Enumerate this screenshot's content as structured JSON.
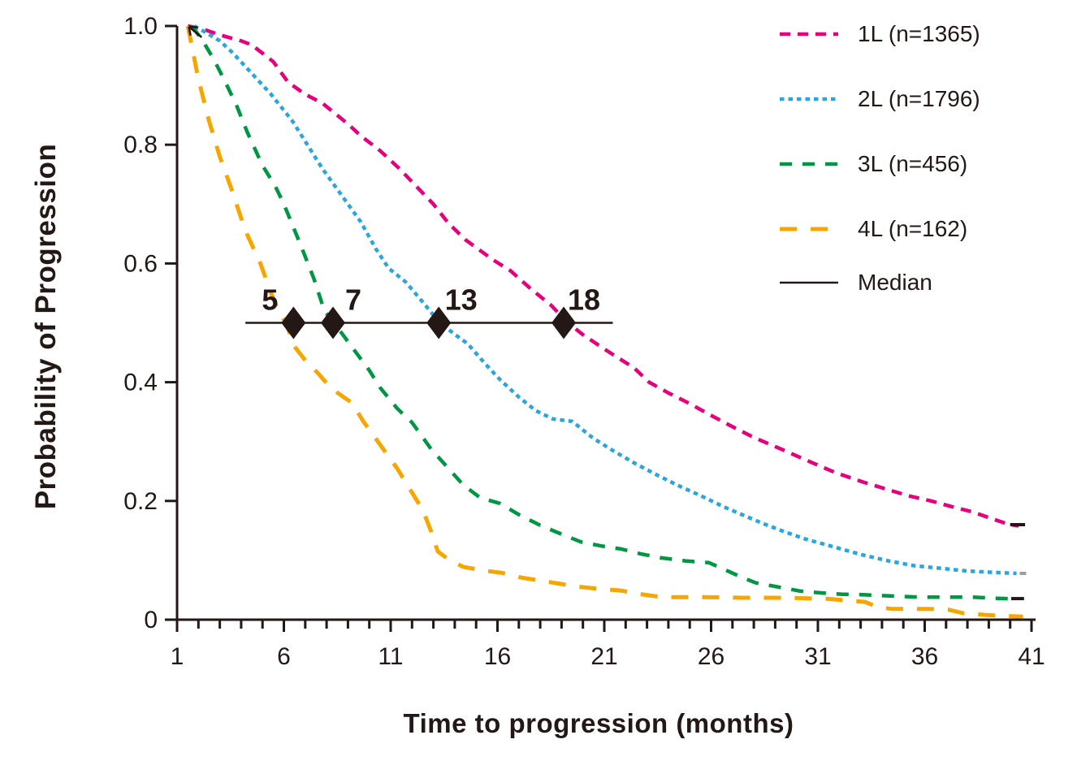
{
  "figure": {
    "background": "#ffffff",
    "text_color": "#231815",
    "axis_color": "#231815"
  },
  "chart_data": {
    "type": "line",
    "title": "",
    "xlabel": "Time to progression (months)",
    "ylabel": "Probability of Progression",
    "xlim": [
      1,
      41
    ],
    "ylim": [
      0,
      1
    ],
    "grid": false,
    "legend_position": "top-right",
    "x_major_ticks": [
      1,
      6,
      11,
      16,
      21,
      26,
      31,
      36,
      41
    ],
    "x_major_tick_labels": [
      "1",
      "6",
      "11",
      "16",
      "21",
      "26",
      "31",
      "36",
      "41"
    ],
    "x_minor_tick_step": 1,
    "y_ticks": [
      {
        "v": 0,
        "label": "0"
      },
      {
        "v": 0.2,
        "label": "0.2"
      },
      {
        "v": 0.4,
        "label": "0.4"
      },
      {
        "v": 0.6,
        "label": "0.6"
      },
      {
        "v": 0.8,
        "label": "0.8"
      },
      {
        "v": 1.0,
        "label": "1.0"
      }
    ],
    "series": [
      {
        "name": "1L (n=1365)",
        "color": "#E6007E",
        "dash": [
          13,
          9
        ],
        "stroke_width": 4.5,
        "points": [
          [
            1.5,
            1.0
          ],
          [
            2.2,
            0.995
          ],
          [
            3,
            0.985
          ],
          [
            4,
            0.975
          ],
          [
            4.5,
            0.968
          ],
          [
            5.5,
            0.94
          ],
          [
            6.2,
            0.905
          ],
          [
            7,
            0.885
          ],
          [
            7.8,
            0.87
          ],
          [
            9,
            0.835
          ],
          [
            9.6,
            0.815
          ],
          [
            10.5,
            0.79
          ],
          [
            11.4,
            0.76
          ],
          [
            12.2,
            0.73
          ],
          [
            13,
            0.7
          ],
          [
            13.7,
            0.668
          ],
          [
            14.5,
            0.64
          ],
          [
            15.8,
            0.606
          ],
          [
            16.6,
            0.588
          ],
          [
            17.6,
            0.556
          ],
          [
            18.5,
            0.53
          ],
          [
            19.2,
            0.503
          ],
          [
            20,
            0.48
          ],
          [
            21,
            0.456
          ],
          [
            22.4,
            0.424
          ],
          [
            23.1,
            0.4
          ],
          [
            24,
            0.382
          ],
          [
            25,
            0.364
          ],
          [
            25.9,
            0.346
          ],
          [
            27,
            0.325
          ],
          [
            28,
            0.307
          ],
          [
            29.3,
            0.287
          ],
          [
            30.5,
            0.268
          ],
          [
            31.8,
            0.248
          ],
          [
            33.1,
            0.232
          ],
          [
            34.2,
            0.22
          ],
          [
            35.2,
            0.209
          ],
          [
            36.3,
            0.2
          ],
          [
            37.3,
            0.19
          ],
          [
            38.2,
            0.182
          ],
          [
            39,
            0.172
          ],
          [
            39.9,
            0.161
          ],
          [
            40.4,
            0.158
          ]
        ],
        "end_mark": {
          "x1": 40.0,
          "x2": 40.7,
          "y": 0.16,
          "color": "#231815"
        }
      },
      {
        "name": "2L (n=1796)",
        "color": "#29A6DE",
        "dash": [
          5.5,
          5
        ],
        "stroke_width": 4.5,
        "points": [
          [
            1.8,
            1.0
          ],
          [
            2.3,
            0.99
          ],
          [
            3,
            0.975
          ],
          [
            3.6,
            0.955
          ],
          [
            4.5,
            0.92
          ],
          [
            5.4,
            0.885
          ],
          [
            6.4,
            0.84
          ],
          [
            7.1,
            0.8
          ],
          [
            7.8,
            0.76
          ],
          [
            8.7,
            0.715
          ],
          [
            9.6,
            0.67
          ],
          [
            10.3,
            0.625
          ],
          [
            10.9,
            0.592
          ],
          [
            11.7,
            0.569
          ],
          [
            12.5,
            0.535
          ],
          [
            13.3,
            0.5
          ],
          [
            14.1,
            0.478
          ],
          [
            14.6,
            0.465
          ],
          [
            15.4,
            0.432
          ],
          [
            16.1,
            0.405
          ],
          [
            17,
            0.375
          ],
          [
            17.8,
            0.352
          ],
          [
            18.6,
            0.338
          ],
          [
            19.5,
            0.334
          ],
          [
            20.5,
            0.305
          ],
          [
            21.4,
            0.285
          ],
          [
            22.4,
            0.264
          ],
          [
            23.4,
            0.245
          ],
          [
            24.4,
            0.227
          ],
          [
            25.5,
            0.209
          ],
          [
            26.6,
            0.19
          ],
          [
            27.7,
            0.173
          ],
          [
            28.5,
            0.161
          ],
          [
            29.3,
            0.15
          ],
          [
            30.4,
            0.136
          ],
          [
            31.5,
            0.125
          ],
          [
            32.3,
            0.117
          ],
          [
            33.1,
            0.109
          ],
          [
            34.3,
            0.099
          ],
          [
            35.5,
            0.091
          ],
          [
            36.9,
            0.086
          ],
          [
            38,
            0.082
          ],
          [
            39,
            0.08
          ],
          [
            40.3,
            0.078
          ]
        ],
        "end_mark": {
          "x1": 40.45,
          "x2": 40.75,
          "y": 0.078,
          "color": "#9D9D99"
        }
      },
      {
        "name": "3L (n=456)",
        "color": "#009644",
        "dash": [
          15,
          13
        ],
        "stroke_width": 4.5,
        "points": [
          [
            1.7,
            1.0
          ],
          [
            2.2,
            0.975
          ],
          [
            2.7,
            0.945
          ],
          [
            3.2,
            0.91
          ],
          [
            3.8,
            0.865
          ],
          [
            4.3,
            0.82
          ],
          [
            5,
            0.765
          ],
          [
            5.6,
            0.73
          ],
          [
            6,
            0.7
          ],
          [
            6.8,
            0.63
          ],
          [
            7.4,
            0.575
          ],
          [
            7.9,
            0.52
          ],
          [
            8.4,
            0.498
          ],
          [
            8.7,
            0.483
          ],
          [
            9.4,
            0.449
          ],
          [
            10,
            0.42
          ],
          [
            10.5,
            0.391
          ],
          [
            11.3,
            0.356
          ],
          [
            12,
            0.332
          ],
          [
            12.9,
            0.287
          ],
          [
            13.7,
            0.255
          ],
          [
            14.4,
            0.227
          ],
          [
            15.2,
            0.205
          ],
          [
            16.1,
            0.196
          ],
          [
            17,
            0.177
          ],
          [
            18,
            0.159
          ],
          [
            19,
            0.144
          ],
          [
            19.9,
            0.131
          ],
          [
            20.9,
            0.124
          ],
          [
            21.8,
            0.119
          ],
          [
            22.7,
            0.111
          ],
          [
            23.7,
            0.104
          ],
          [
            24.8,
            0.099
          ],
          [
            25.9,
            0.096
          ],
          [
            26.6,
            0.085
          ],
          [
            27.4,
            0.072
          ],
          [
            28.1,
            0.062
          ],
          [
            29.3,
            0.054
          ],
          [
            30.2,
            0.048
          ],
          [
            31.2,
            0.045
          ],
          [
            32.1,
            0.043
          ],
          [
            33.1,
            0.042
          ],
          [
            34.4,
            0.04
          ],
          [
            35.7,
            0.038
          ],
          [
            37,
            0.038
          ],
          [
            38.2,
            0.038
          ],
          [
            39.4,
            0.036
          ],
          [
            40.2,
            0.035
          ]
        ],
        "end_mark": {
          "x1": 40.05,
          "x2": 40.65,
          "y": 0.0355,
          "color": "#231815"
        }
      },
      {
        "name": "4L (n=162)",
        "color": "#F7A600",
        "dash": [
          21,
          17
        ],
        "stroke_width": 5,
        "points": [
          [
            1.5,
            1.0
          ],
          [
            1.7,
            0.965
          ],
          [
            2,
            0.91
          ],
          [
            2.5,
            0.84
          ],
          [
            3,
            0.78
          ],
          [
            3.5,
            0.73
          ],
          [
            4.2,
            0.655
          ],
          [
            4.9,
            0.6
          ],
          [
            5.4,
            0.55
          ],
          [
            5.8,
            0.515
          ],
          [
            6.1,
            0.5
          ],
          [
            6.5,
            0.46
          ],
          [
            7,
            0.437
          ],
          [
            7.6,
            0.415
          ],
          [
            8.2,
            0.39
          ],
          [
            8.8,
            0.375
          ],
          [
            9.2,
            0.365
          ],
          [
            9.7,
            0.335
          ],
          [
            10.2,
            0.31
          ],
          [
            10.8,
            0.28
          ],
          [
            11.3,
            0.255
          ],
          [
            12,
            0.214
          ],
          [
            12.5,
            0.185
          ],
          [
            12.9,
            0.148
          ],
          [
            13.2,
            0.115
          ],
          [
            13.8,
            0.099
          ],
          [
            14.4,
            0.089
          ],
          [
            15.3,
            0.083
          ],
          [
            16.2,
            0.079
          ],
          [
            17.1,
            0.071
          ],
          [
            18,
            0.066
          ],
          [
            19,
            0.06
          ],
          [
            19.7,
            0.056
          ],
          [
            20.7,
            0.052
          ],
          [
            21.8,
            0.049
          ],
          [
            22.7,
            0.043
          ],
          [
            23.7,
            0.038
          ],
          [
            25.6,
            0.038
          ],
          [
            27.5,
            0.037
          ],
          [
            29.5,
            0.037
          ],
          [
            31.5,
            0.035
          ],
          [
            33.2,
            0.03
          ],
          [
            33.8,
            0.021
          ],
          [
            34.5,
            0.018
          ],
          [
            36.2,
            0.018
          ],
          [
            37.1,
            0.017
          ],
          [
            37.8,
            0.011
          ],
          [
            38.9,
            0.008
          ],
          [
            40,
            0.006
          ],
          [
            40.6,
            0.005
          ]
        ]
      }
    ],
    "median": {
      "label": "Median",
      "value": 0.5,
      "color": "#231815",
      "line_width": 2.5,
      "line_x_range": [
        4.2,
        21.4
      ],
      "markers": [
        {
          "median_label": "5",
          "cross_x": 6.45,
          "label_x": 5.35
        },
        {
          "median_label": "7",
          "cross_x": 8.3,
          "label_x": 9.25
        },
        {
          "median_label": "13",
          "cross_x": 13.25,
          "label_x": 14.3
        },
        {
          "median_label": "18",
          "cross_x": 19.1,
          "label_x": 20.05
        }
      ]
    },
    "start_annotation_arrow": {
      "tip": [
        1.55,
        0.999
      ],
      "tail": [
        2.15,
        0.981
      ],
      "color": "#231815"
    }
  }
}
